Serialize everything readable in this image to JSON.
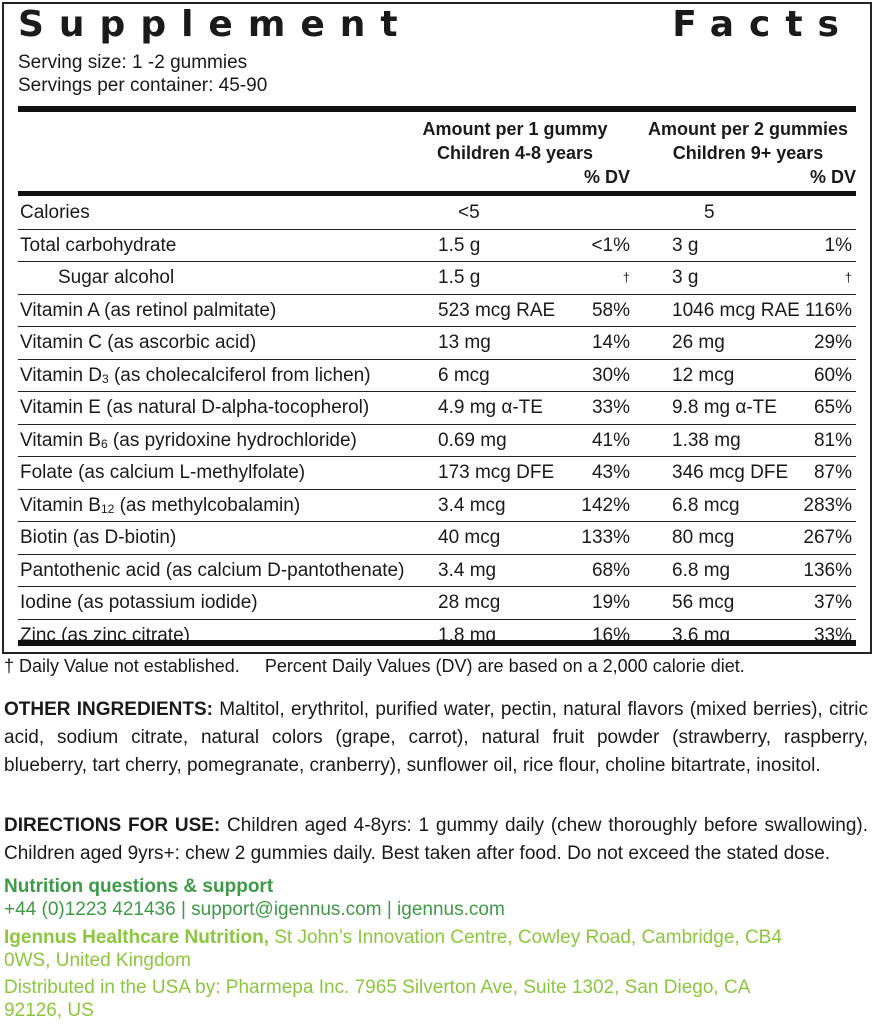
{
  "title": {
    "word1": "Supplement",
    "word2": "Facts"
  },
  "serving_size": "Serving size: 1 -2 gummies",
  "servings_per_container": "Servings per container: 45-90",
  "columns": {
    "col1_line1": "Amount per 1 gummy",
    "col1_line2": "Children 4-8 years",
    "col1_dv": "% DV",
    "col2_line1": "Amount per 2 gummies",
    "col2_line2": "Children 9+ years",
    "col2_dv": "% DV"
  },
  "rows": [
    {
      "name": "Calories",
      "sub": "",
      "rest": "",
      "a1": "<5",
      "d1": "",
      "a2": "5",
      "d2": ""
    },
    {
      "name": "Total carbohydrate",
      "sub": "",
      "rest": "",
      "a1": "1.5 g",
      "d1": "<1%",
      "a2": "3 g",
      "d2": "1%"
    },
    {
      "name": "Sugar alcohol",
      "sub": "",
      "rest": "",
      "a1": "1.5 g",
      "d1": "†",
      "a2": "3 g",
      "d2": "†"
    },
    {
      "name": "Vitamin A (as retinol palmitate)",
      "sub": "",
      "rest": "",
      "a1": "523 mcg RAE",
      "d1": "58%",
      "a2": "1046 mcg RAE",
      "d2": "116%"
    },
    {
      "name": "Vitamin C (as ascorbic acid)",
      "sub": "",
      "rest": "",
      "a1": "13 mg",
      "d1": "14%",
      "a2": "26 mg",
      "d2": "29%"
    },
    {
      "name": "Vitamin D",
      "sub": "3",
      "rest": " (as cholecalciferol from lichen)",
      "a1": "6 mcg",
      "d1": "30%",
      "a2": "12 mcg",
      "d2": "60%"
    },
    {
      "name": "Vitamin E (as natural D-alpha-tocopherol)",
      "sub": "",
      "rest": "",
      "a1": "4.9 mg α-TE",
      "d1": "33%",
      "a2": "9.8 mg α-TE",
      "d2": "65%"
    },
    {
      "name": "Vitamin B",
      "sub": "6",
      "rest": " (as pyridoxine hydrochloride)",
      "a1": "0.69 mg",
      "d1": "41%",
      "a2": "1.38 mg",
      "d2": "81%"
    },
    {
      "name": "Folate (as calcium L-methylfolate)",
      "sub": "",
      "rest": "",
      "a1": "173 mcg DFE",
      "d1": "43%",
      "a2": "346 mcg DFE",
      "d2": "87%"
    },
    {
      "name": "Vitamin B",
      "sub": "12",
      "rest": " (as methylcobalamin)",
      "a1": "3.4 mcg",
      "d1": "142%",
      "a2": "6.8 mcg",
      "d2": "283%"
    },
    {
      "name": "Biotin (as D-biotin)",
      "sub": "",
      "rest": "",
      "a1": "40 mcg",
      "d1": "133%",
      "a2": "80 mcg",
      "d2": "267%"
    },
    {
      "name": "Pantothenic acid (as calcium D-pantothenate)",
      "sub": "",
      "rest": "",
      "a1": "3.4 mg",
      "d1": "68%",
      "a2": "6.8 mg",
      "d2": "136%"
    },
    {
      "name": "Iodine (as potassium iodide)",
      "sub": "",
      "rest": "",
      "a1": "28 mcg",
      "d1": "19%",
      "a2": "56 mcg",
      "d2": "37%"
    },
    {
      "name": "Zinc (as zinc citrate)",
      "sub": "",
      "rest": "",
      "a1": "1.8 mg",
      "d1": "16%",
      "a2": "3.6 mg",
      "d2": "33%"
    }
  ],
  "footnote": "† Daily Value not established.     Percent Daily Values (DV) are based on a 2,000 calorie diet.",
  "other_ingredients": {
    "label": "OTHER INGREDIENTS:",
    "text": " Maltitol, erythritol, purified water, pectin, natural flavors (mixed berries), citric acid, sodium citrate, natural colors (grape, carrot), natural fruit powder (strawberry, raspberry, blueberry, tart cherry, pomegranate, cranberry), sunflower oil, rice flour, choline bitartrate, inositol."
  },
  "directions": {
    "label": "DIRECTIONS FOR USE:",
    "text": " Children aged 4-8yrs: 1 gummy daily (chew thoroughly before swallowing). Children aged 9yrs+: chew 2 gummies daily. Best taken after food. Do not exceed the stated dose."
  },
  "support": {
    "heading": "Nutrition questions & support",
    "contact": "+44 (0)1223 421436 | support@igennus.com | igennus.com"
  },
  "company": {
    "name": "Igennus Healthcare Nutrition,",
    "address": " St John’s Innovation Centre, Cowley Road, Cambridge, CB4 0WS, United Kingdom"
  },
  "distributor": "Distributed in the USA by: Pharmepa Inc. 7965 Silverton Ave, Suite 1302, San Diego, CA 92126, US",
  "colors": {
    "dark_green": "#3e9a47",
    "light_green": "#8cc63f",
    "text": "#1a1a1a"
  }
}
